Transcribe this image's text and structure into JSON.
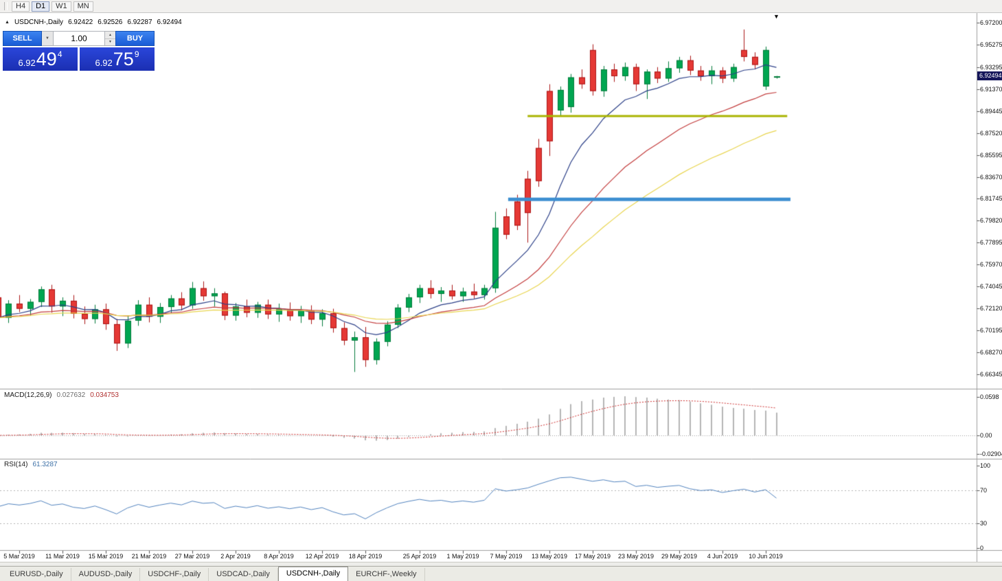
{
  "toolbar": {
    "timeframes": [
      {
        "label": "H4",
        "active": false
      },
      {
        "label": "D1",
        "active": true
      },
      {
        "label": "W1",
        "active": false
      },
      {
        "label": "MN",
        "active": false
      }
    ]
  },
  "symbol_info": {
    "collapse_icon": "▲",
    "symbol": "USDCNH-,Daily",
    "open": "6.92422",
    "high": "6.92526",
    "low": "6.92287",
    "close": "6.92494"
  },
  "trade_panel": {
    "sell_label": "SELL",
    "buy_label": "BUY",
    "volume": "1.00",
    "dropdown_icon": "▼",
    "spin_up_icon": "▲",
    "spin_down_icon": "▼",
    "sell_price": {
      "big_figure": "6.92",
      "pips": "49",
      "pipette": "4"
    },
    "buy_price": {
      "big_figure": "6.92",
      "pips": "75",
      "pipette": "9"
    }
  },
  "shift_marker_icon": "▼",
  "price_axis": {
    "labels": [
      "6.97200",
      "6.95275",
      "6.93295",
      "6.91370",
      "6.89445",
      "6.87520",
      "6.85595",
      "6.83670",
      "6.81745",
      "6.79820",
      "6.77895",
      "6.75970",
      "6.74045",
      "6.72120",
      "6.70195",
      "6.68270",
      "6.66345"
    ],
    "current": "6.92494"
  },
  "date_axis": {
    "labels": [
      "5 Mar 2019",
      "11 Mar 2019",
      "15 Mar 2019",
      "21 Mar 2019",
      "27 Mar 2019",
      "2 Apr 2019",
      "8 Apr 2019",
      "12 Apr 2019",
      "18 Apr 2019",
      "25 Apr 2019",
      "1 May 2019",
      "7 May 2019",
      "13 May 2019",
      "17 May 2019",
      "23 May 2019",
      "29 May 2019",
      "4 Jun 2019",
      "10 Jun 2019"
    ]
  },
  "indicators": {
    "macd": {
      "name": "MACD(12,26,9)",
      "value_main": "0.027632",
      "value_signal": "0.034753",
      "axis_labels": [
        "0.0598",
        "0.00",
        "-0.02904"
      ],
      "axis_values": [
        0.0598,
        0,
        -0.02904
      ]
    },
    "rsi": {
      "name": "RSI(14)",
      "value": "61.3287",
      "axis_labels": [
        "100",
        "70",
        "30",
        "0"
      ],
      "axis_values": [
        100,
        70,
        30,
        0
      ]
    }
  },
  "tabs": [
    {
      "label": "EURUSD-,Daily",
      "active": false
    },
    {
      "label": "AUDUSD-,Daily",
      "active": false
    },
    {
      "label": "USDCHF-,Daily",
      "active": false
    },
    {
      "label": "USDCAD-,Daily",
      "active": false
    },
    {
      "label": "USDCNH-,Daily",
      "active": true
    },
    {
      "label": "EURCHF-,Weekly",
      "active": false
    }
  ],
  "colors": {
    "bull": "#00a651",
    "bull_border": "#007a3a",
    "bear": "#e53935",
    "bear_border": "#aa1515",
    "macd_histogram": "#b4b4b4",
    "macd_signal": "#cc2a2a",
    "rsi_line": "#4f81bd",
    "level_dotted": "#b0b0b0",
    "divider": "#9e9e9e",
    "badge_bg": "#14165a",
    "button_blue": "#1a5cd6",
    "price_box_blue": "#1b2fb2"
  },
  "chart_data": {
    "type": "candlestick",
    "title": "USDCNH-,Daily",
    "ylim": [
      6.66345,
      6.972
    ],
    "columns": [
      "date",
      "open",
      "high",
      "low",
      "close"
    ],
    "candles": [
      [
        "1 Mar 2019",
        6.731,
        6.7345,
        6.709,
        6.713
      ],
      [
        "4 Mar 2019",
        6.713,
        6.7285,
        6.7085,
        6.7255
      ],
      [
        "5 Mar 2019",
        6.7255,
        6.733,
        6.718,
        6.721
      ],
      [
        "6 Mar 2019",
        6.721,
        6.7295,
        6.715,
        6.727
      ],
      [
        "7 Mar 2019",
        6.727,
        6.7405,
        6.7225,
        6.738
      ],
      [
        "8 Mar 2019",
        6.738,
        6.742,
        6.7175,
        6.723
      ],
      [
        "11 Mar 2019",
        6.723,
        6.731,
        6.7145,
        6.728
      ],
      [
        "12 Mar 2019",
        6.728,
        6.733,
        6.7125,
        6.7165
      ],
      [
        "13 Mar 2019",
        6.7165,
        6.723,
        6.7075,
        6.712
      ],
      [
        "14 Mar 2019",
        6.712,
        6.7245,
        6.708,
        6.7205
      ],
      [
        "15 Mar 2019",
        6.7205,
        6.7255,
        6.7025,
        6.7075
      ],
      [
        "18 Mar 2019",
        6.7075,
        6.712,
        6.684,
        6.6905
      ],
      [
        "19 Mar 2019",
        6.6905,
        6.715,
        6.6865,
        6.7105
      ],
      [
        "20 Mar 2019",
        6.7105,
        6.7285,
        6.706,
        6.7245
      ],
      [
        "21 Mar 2019",
        6.7245,
        6.731,
        6.709,
        6.714
      ],
      [
        "22 Mar 2019",
        6.714,
        6.726,
        6.7085,
        6.7225
      ],
      [
        "25 Mar 2019",
        6.7225,
        6.733,
        6.717,
        6.73
      ],
      [
        "26 Mar 2019",
        6.73,
        6.7355,
        6.7195,
        6.724
      ],
      [
        "27 Mar 2019",
        6.724,
        6.7445,
        6.721,
        6.739
      ],
      [
        "28 Mar 2019",
        6.739,
        6.745,
        6.728,
        6.732
      ],
      [
        "29 Mar 2019",
        6.732,
        6.739,
        6.723,
        6.7345
      ],
      [
        "1 Apr 2019",
        6.7345,
        6.736,
        6.711,
        6.715
      ],
      [
        "2 Apr 2019",
        6.715,
        6.726,
        6.7105,
        6.723
      ],
      [
        "3 Apr 2019",
        6.723,
        6.729,
        6.7135,
        6.7175
      ],
      [
        "4 Apr 2019",
        6.7175,
        6.727,
        6.713,
        6.7245
      ],
      [
        "5 Apr 2019",
        6.7245,
        6.729,
        6.712,
        6.716
      ],
      [
        "8 Apr 2019",
        6.716,
        6.7255,
        6.7095,
        6.7205
      ],
      [
        "9 Apr 2019",
        6.7205,
        6.7265,
        6.7105,
        6.7145
      ],
      [
        "10 Apr 2019",
        6.7145,
        6.7235,
        6.7085,
        6.7195
      ],
      [
        "11 Apr 2019",
        6.7195,
        6.724,
        6.7075,
        6.7115
      ],
      [
        "12 Apr 2019",
        6.7115,
        6.7205,
        6.7055,
        6.717
      ],
      [
        "15 Apr 2019",
        6.717,
        6.721,
        6.7,
        6.704
      ],
      [
        "16 Apr 2019",
        6.704,
        6.709,
        6.689,
        6.693
      ],
      [
        "17 Apr 2019",
        6.693,
        6.701,
        6.6655,
        6.696
      ],
      [
        "18 Apr 2019",
        6.696,
        6.705,
        6.67,
        6.676
      ],
      [
        "19 Apr 2019",
        6.676,
        6.695,
        6.672,
        6.692
      ],
      [
        "22 Apr 2019",
        6.692,
        6.71,
        6.688,
        6.707
      ],
      [
        "23 Apr 2019",
        6.707,
        6.725,
        6.704,
        6.722
      ],
      [
        "24 Apr 2019",
        6.722,
        6.734,
        6.718,
        6.731
      ],
      [
        "25 Apr 2019",
        6.731,
        6.742,
        6.726,
        6.739
      ],
      [
        "26 Apr 2019",
        6.739,
        6.746,
        6.73,
        6.734
      ],
      [
        "29 Apr 2019",
        6.734,
        6.74,
        6.727,
        6.737
      ],
      [
        "30 Apr 2019",
        6.737,
        6.742,
        6.729,
        6.732
      ],
      [
        "1 May 2019",
        6.732,
        6.7395,
        6.727,
        6.736
      ],
      [
        "2 May 2019",
        6.736,
        6.743,
        6.73,
        6.733
      ],
      [
        "3 May 2019",
        6.733,
        6.742,
        6.729,
        6.739
      ],
      [
        "6 May 2019",
        6.739,
        6.806,
        6.735,
        6.792
      ],
      [
        "7 May 2019",
        6.802,
        6.809,
        6.782,
        6.786
      ],
      [
        "8 May 2019",
        6.815,
        6.821,
        6.79,
        6.794
      ],
      [
        "9 May 2019",
        6.835,
        6.842,
        6.779,
        6.805
      ],
      [
        "10 May 2019",
        6.862,
        6.87,
        6.828,
        6.833
      ],
      [
        "13 May 2019",
        6.912,
        6.918,
        6.855,
        6.868
      ],
      [
        "14 May 2019",
        6.895,
        6.916,
        6.89,
        6.913
      ],
      [
        "15 May 2019",
        6.898,
        6.927,
        6.893,
        6.924
      ],
      [
        "16 May 2019",
        6.924,
        6.931,
        6.914,
        6.918
      ],
      [
        "17 May 2019",
        6.948,
        6.953,
        6.908,
        6.912
      ],
      [
        "20 May 2019",
        6.912,
        6.934,
        6.907,
        6.931
      ],
      [
        "21 May 2019",
        6.931,
        6.936,
        6.92,
        6.925
      ],
      [
        "22 May 2019",
        6.925,
        6.937,
        6.921,
        6.933
      ],
      [
        "23 May 2019",
        6.933,
        6.936,
        6.912,
        6.918
      ],
      [
        "24 May 2019",
        6.918,
        6.931,
        6.905,
        6.929
      ],
      [
        "27 May 2019",
        6.929,
        6.933,
        6.919,
        6.923
      ],
      [
        "28 May 2019",
        6.923,
        6.938,
        6.92,
        6.932
      ],
      [
        "29 May 2019",
        6.932,
        6.942,
        6.928,
        6.939
      ],
      [
        "30 May 2019",
        6.939,
        6.943,
        6.926,
        6.93
      ],
      [
        "31 May 2019",
        6.93,
        6.934,
        6.921,
        6.925
      ],
      [
        "3 Jun 2019",
        6.925,
        6.934,
        6.918,
        6.93
      ],
      [
        "4 Jun 2019",
        6.93,
        6.933,
        6.919,
        6.923
      ],
      [
        "5 Jun 2019",
        6.923,
        6.936,
        6.92,
        6.933
      ],
      [
        "6 Jun 2019",
        6.948,
        6.966,
        6.938,
        6.942
      ],
      [
        "7 Jun 2019",
        6.942,
        6.946,
        6.931,
        6.935
      ],
      [
        "10 Jun 2019",
        6.916,
        6.951,
        6.913,
        6.948
      ],
      [
        "11 Jun 2019",
        6.92422,
        6.92526,
        6.92287,
        6.92494
      ]
    ],
    "date_tick_indices": [
      2,
      6,
      10,
      14,
      18,
      22,
      26,
      30,
      34,
      39,
      43,
      47,
      51,
      55,
      59,
      63,
      67,
      71
    ],
    "overlays": {
      "moving_averages": [
        {
          "name": "fast-ma",
          "period": 8,
          "color": "#2b3f87"
        },
        {
          "name": "medium-ma",
          "period": 20,
          "color": "#c23b3b"
        },
        {
          "name": "slow-ma",
          "period": 34,
          "color": "#e8d44d"
        }
      ],
      "horizontal_lines": [
        {
          "name": "resistance-line",
          "price": 6.89,
          "color": "#a9b400",
          "width": 3,
          "start_index": 49,
          "end_index": 73
        },
        {
          "name": "support-line",
          "price": 6.817,
          "color": "#3d8fd1",
          "width": 5,
          "start_index": 47.2,
          "end_index": 73.3
        }
      ]
    },
    "indicators": {
      "macd": {
        "fast": 12,
        "slow": 26,
        "signal": 9,
        "current_main": 0.027632,
        "current_signal": 0.034753,
        "axis_range": [
          -0.02904,
          0.0598
        ]
      },
      "rsi": {
        "period": 14,
        "current": 61.3287,
        "levels": [
          70,
          30
        ],
        "range": [
          0,
          100
        ]
      }
    }
  }
}
